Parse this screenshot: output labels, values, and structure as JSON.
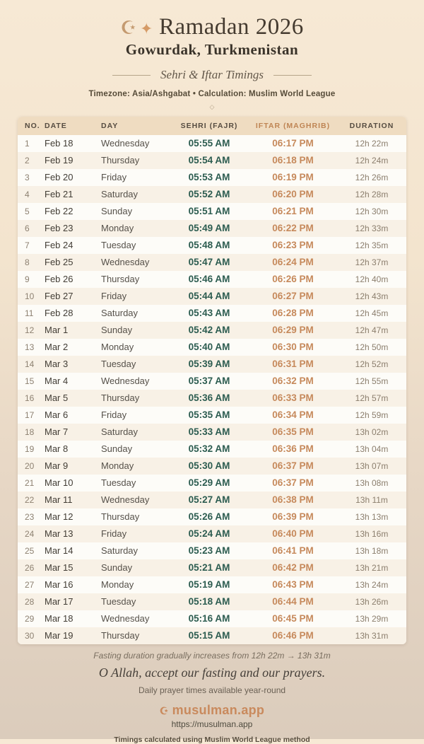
{
  "header": {
    "crescent_icon": "☪",
    "sparkle_icon": "✦",
    "title": "Ramadan 2026",
    "location": "Gowurdak, Turkmenistan",
    "subtitle": "Sehri & Iftar Timings",
    "meta": "Timezone: Asia/Ashgabat • Calculation: Muslim World League",
    "ornament_icon": "◇"
  },
  "table": {
    "columns": [
      "NO.",
      "DATE",
      "DAY",
      "SEHRI (FAJR)",
      "IFTAR (MAGHRIB)",
      "DURATION"
    ],
    "rows": [
      {
        "no": "1",
        "date": "Feb 18",
        "day": "Wednesday",
        "sehri": "05:55 AM",
        "iftar": "06:17 PM",
        "duration": "12h 22m"
      },
      {
        "no": "2",
        "date": "Feb 19",
        "day": "Thursday",
        "sehri": "05:54 AM",
        "iftar": "06:18 PM",
        "duration": "12h 24m"
      },
      {
        "no": "3",
        "date": "Feb 20",
        "day": "Friday",
        "sehri": "05:53 AM",
        "iftar": "06:19 PM",
        "duration": "12h 26m"
      },
      {
        "no": "4",
        "date": "Feb 21",
        "day": "Saturday",
        "sehri": "05:52 AM",
        "iftar": "06:20 PM",
        "duration": "12h 28m"
      },
      {
        "no": "5",
        "date": "Feb 22",
        "day": "Sunday",
        "sehri": "05:51 AM",
        "iftar": "06:21 PM",
        "duration": "12h 30m"
      },
      {
        "no": "6",
        "date": "Feb 23",
        "day": "Monday",
        "sehri": "05:49 AM",
        "iftar": "06:22 PM",
        "duration": "12h 33m"
      },
      {
        "no": "7",
        "date": "Feb 24",
        "day": "Tuesday",
        "sehri": "05:48 AM",
        "iftar": "06:23 PM",
        "duration": "12h 35m"
      },
      {
        "no": "8",
        "date": "Feb 25",
        "day": "Wednesday",
        "sehri": "05:47 AM",
        "iftar": "06:24 PM",
        "duration": "12h 37m"
      },
      {
        "no": "9",
        "date": "Feb 26",
        "day": "Thursday",
        "sehri": "05:46 AM",
        "iftar": "06:26 PM",
        "duration": "12h 40m"
      },
      {
        "no": "10",
        "date": "Feb 27",
        "day": "Friday",
        "sehri": "05:44 AM",
        "iftar": "06:27 PM",
        "duration": "12h 43m"
      },
      {
        "no": "11",
        "date": "Feb 28",
        "day": "Saturday",
        "sehri": "05:43 AM",
        "iftar": "06:28 PM",
        "duration": "12h 45m"
      },
      {
        "no": "12",
        "date": "Mar 1",
        "day": "Sunday",
        "sehri": "05:42 AM",
        "iftar": "06:29 PM",
        "duration": "12h 47m"
      },
      {
        "no": "13",
        "date": "Mar 2",
        "day": "Monday",
        "sehri": "05:40 AM",
        "iftar": "06:30 PM",
        "duration": "12h 50m"
      },
      {
        "no": "14",
        "date": "Mar 3",
        "day": "Tuesday",
        "sehri": "05:39 AM",
        "iftar": "06:31 PM",
        "duration": "12h 52m"
      },
      {
        "no": "15",
        "date": "Mar 4",
        "day": "Wednesday",
        "sehri": "05:37 AM",
        "iftar": "06:32 PM",
        "duration": "12h 55m"
      },
      {
        "no": "16",
        "date": "Mar 5",
        "day": "Thursday",
        "sehri": "05:36 AM",
        "iftar": "06:33 PM",
        "duration": "12h 57m"
      },
      {
        "no": "17",
        "date": "Mar 6",
        "day": "Friday",
        "sehri": "05:35 AM",
        "iftar": "06:34 PM",
        "duration": "12h 59m"
      },
      {
        "no": "18",
        "date": "Mar 7",
        "day": "Saturday",
        "sehri": "05:33 AM",
        "iftar": "06:35 PM",
        "duration": "13h 02m"
      },
      {
        "no": "19",
        "date": "Mar 8",
        "day": "Sunday",
        "sehri": "05:32 AM",
        "iftar": "06:36 PM",
        "duration": "13h 04m"
      },
      {
        "no": "20",
        "date": "Mar 9",
        "day": "Monday",
        "sehri": "05:30 AM",
        "iftar": "06:37 PM",
        "duration": "13h 07m"
      },
      {
        "no": "21",
        "date": "Mar 10",
        "day": "Tuesday",
        "sehri": "05:29 AM",
        "iftar": "06:37 PM",
        "duration": "13h 08m"
      },
      {
        "no": "22",
        "date": "Mar 11",
        "day": "Wednesday",
        "sehri": "05:27 AM",
        "iftar": "06:38 PM",
        "duration": "13h 11m"
      },
      {
        "no": "23",
        "date": "Mar 12",
        "day": "Thursday",
        "sehri": "05:26 AM",
        "iftar": "06:39 PM",
        "duration": "13h 13m"
      },
      {
        "no": "24",
        "date": "Mar 13",
        "day": "Friday",
        "sehri": "05:24 AM",
        "iftar": "06:40 PM",
        "duration": "13h 16m"
      },
      {
        "no": "25",
        "date": "Mar 14",
        "day": "Saturday",
        "sehri": "05:23 AM",
        "iftar": "06:41 PM",
        "duration": "13h 18m"
      },
      {
        "no": "26",
        "date": "Mar 15",
        "day": "Sunday",
        "sehri": "05:21 AM",
        "iftar": "06:42 PM",
        "duration": "13h 21m"
      },
      {
        "no": "27",
        "date": "Mar 16",
        "day": "Monday",
        "sehri": "05:19 AM",
        "iftar": "06:43 PM",
        "duration": "13h 24m"
      },
      {
        "no": "28",
        "date": "Mar 17",
        "day": "Tuesday",
        "sehri": "05:18 AM",
        "iftar": "06:44 PM",
        "duration": "13h 26m"
      },
      {
        "no": "29",
        "date": "Mar 18",
        "day": "Wednesday",
        "sehri": "05:16 AM",
        "iftar": "06:45 PM",
        "duration": "13h 29m"
      },
      {
        "no": "30",
        "date": "Mar 19",
        "day": "Thursday",
        "sehri": "05:15 AM",
        "iftar": "06:46 PM",
        "duration": "13h 31m"
      }
    ]
  },
  "footer": {
    "note": "Fasting duration gradually increases from 12h 22m → 13h 31m",
    "dua": "O Allah, accept our fasting and our prayers.",
    "availability": "Daily prayer times available year-round",
    "brand_icon": "☪",
    "brand": "musulman.app",
    "url": "https://musulman.app",
    "method": "Timings calculated using Muslim World League method"
  },
  "colors": {
    "background_top": "#f7e9d5",
    "background_bottom": "#dbccbc",
    "title_text": "#453b30",
    "accent_copper": "#c98a5d",
    "sehri_green": "#2c5c50",
    "iftar_copper": "#c6895b",
    "table_header_bg": "#efdcc1",
    "row_odd": "#fdfcf8",
    "row_even": "#f8f1e6"
  }
}
